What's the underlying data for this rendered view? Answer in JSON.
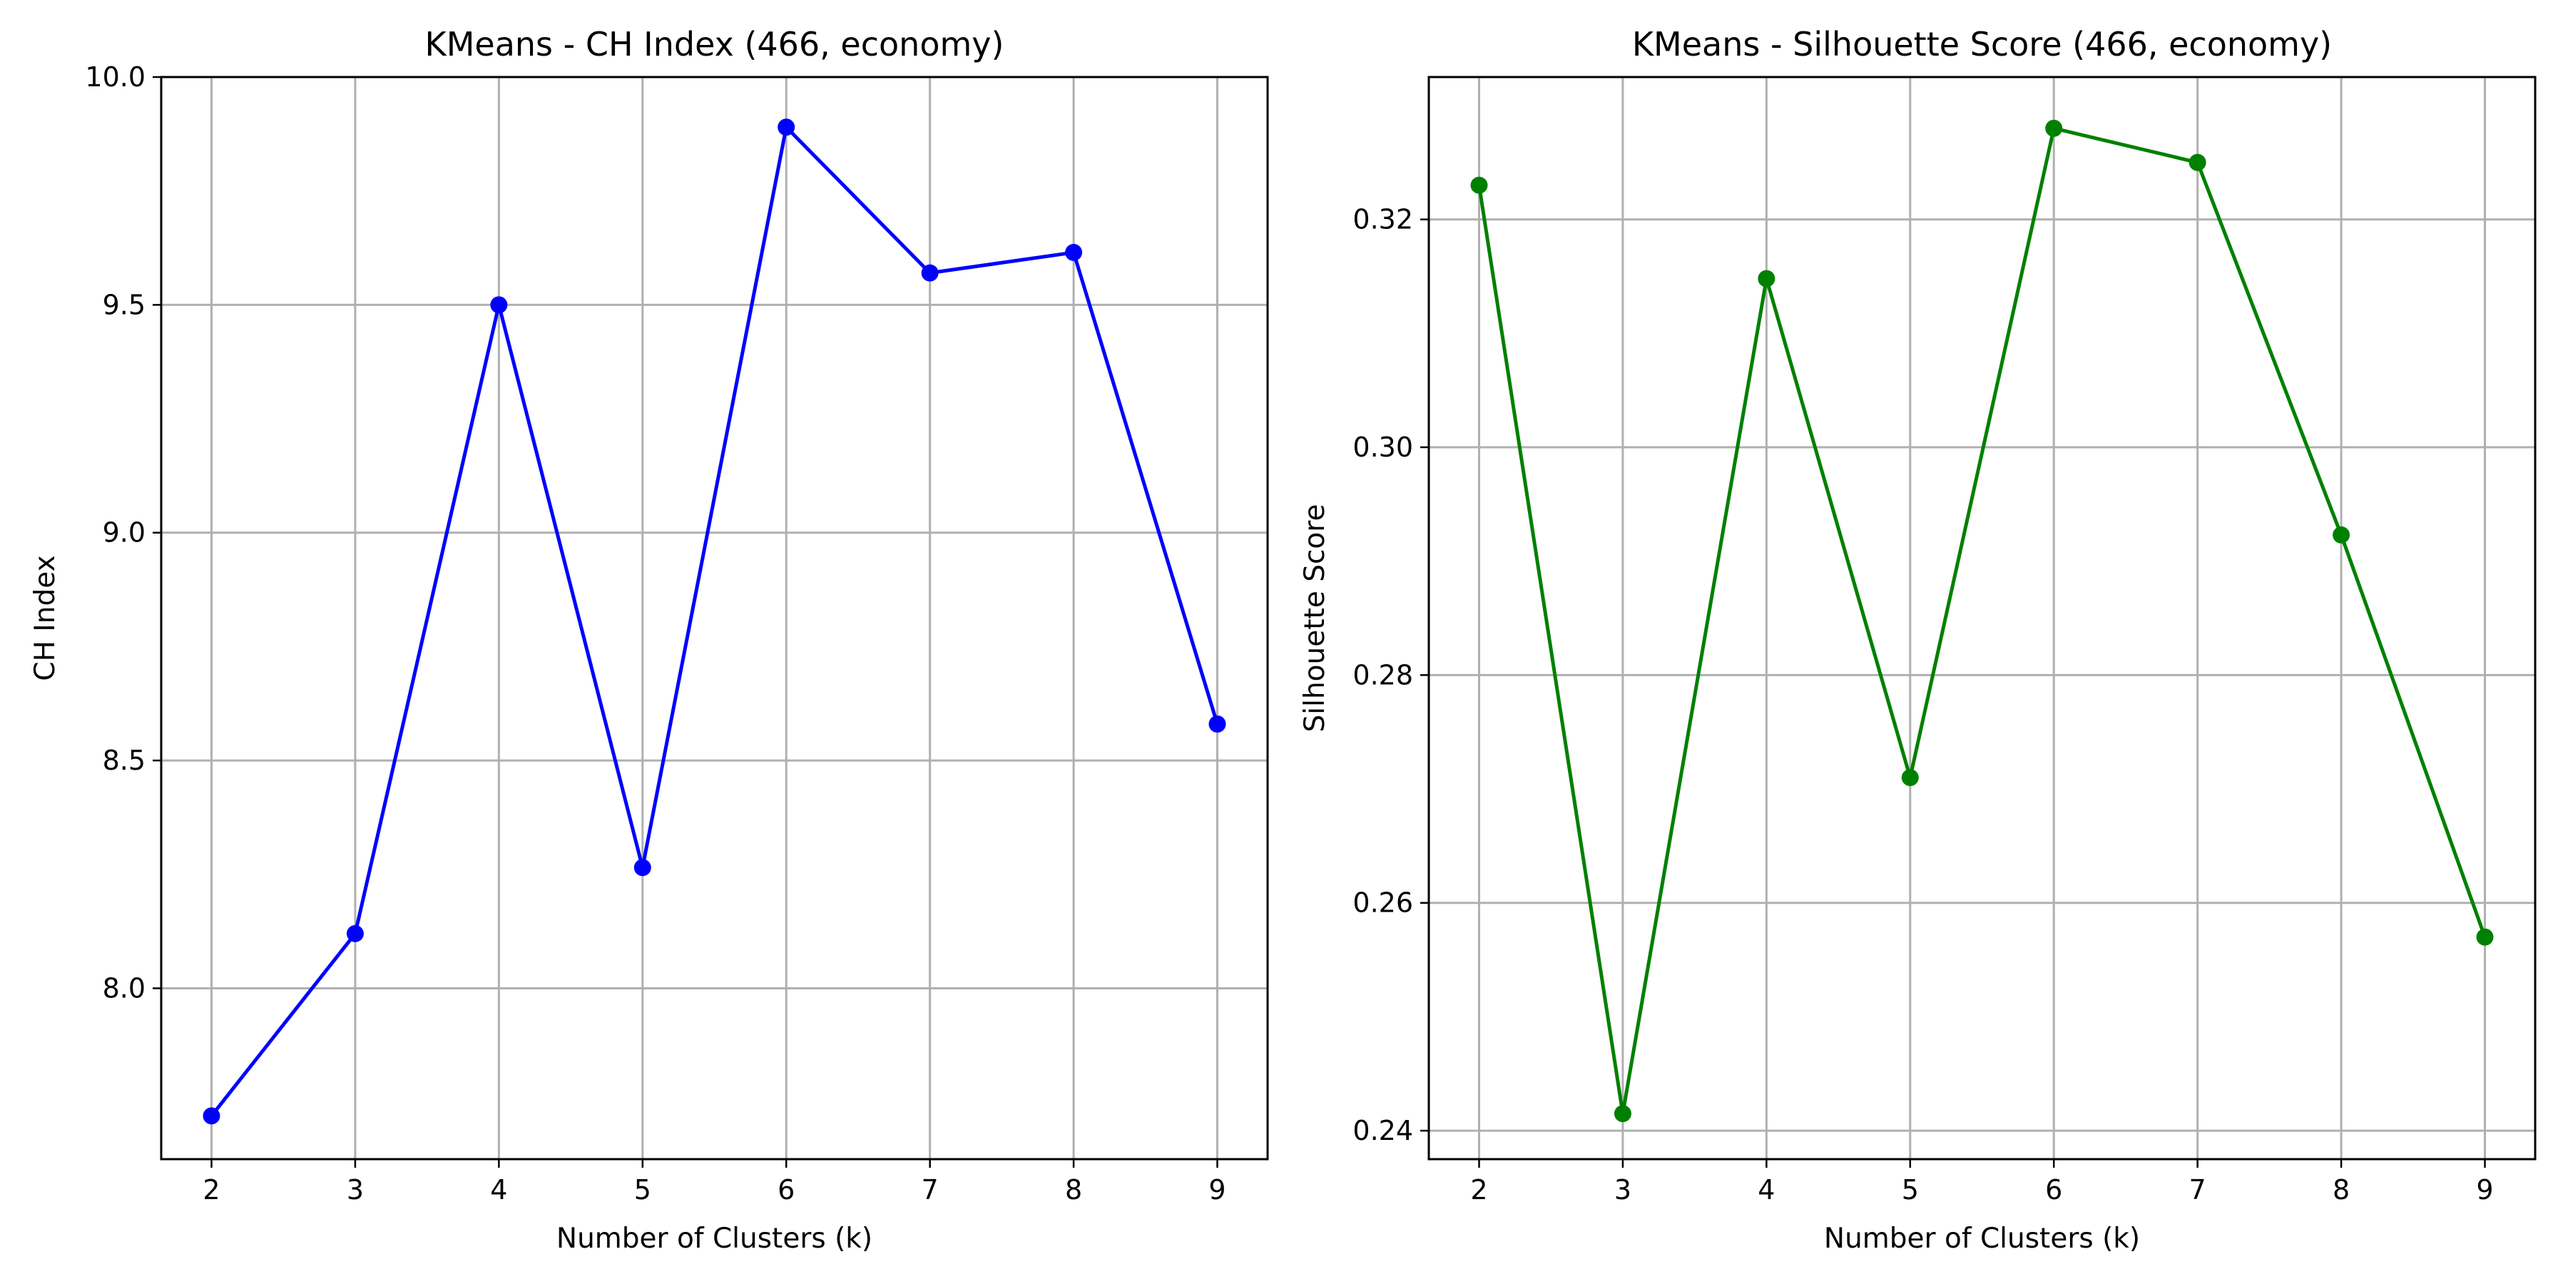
{
  "chart_data": [
    {
      "type": "line",
      "title": "KMeans - CH Index (466, economy)",
      "xlabel": "Number of Clusters (k)",
      "ylabel": "CH Index",
      "x": [
        2,
        3,
        4,
        5,
        6,
        7,
        8,
        9
      ],
      "xticks": [
        "2",
        "3",
        "4",
        "5",
        "6",
        "7",
        "8",
        "9"
      ],
      "xlim": [
        1.65,
        9.35
      ],
      "ylim": [
        7.625,
        10.0
      ],
      "yticks": [
        8.0,
        8.5,
        9.0,
        9.5,
        10.0
      ],
      "ytick_labels": [
        "8.0",
        "8.5",
        "9.0",
        "9.5",
        "10.0"
      ],
      "grid": true,
      "series": [
        {
          "color": "#0000ff",
          "marker": "circle",
          "values": [
            7.72,
            8.12,
            9.5,
            8.265,
            9.89,
            9.57,
            9.615,
            8.58
          ]
        }
      ]
    },
    {
      "type": "line",
      "title": "KMeans - Silhouette Score (466, economy)",
      "xlabel": "Number of Clusters (k)",
      "ylabel": "Silhouette Score",
      "x": [
        2,
        3,
        4,
        5,
        6,
        7,
        8,
        9
      ],
      "xticks": [
        "2",
        "3",
        "4",
        "5",
        "6",
        "7",
        "8",
        "9"
      ],
      "xlim": [
        1.65,
        9.35
      ],
      "ylim": [
        0.2375,
        0.3325
      ],
      "yticks": [
        0.24,
        0.26,
        0.28,
        0.3,
        0.32
      ],
      "ytick_labels": [
        "0.24",
        "0.26",
        "0.28",
        "0.30",
        "0.32"
      ],
      "grid": true,
      "series": [
        {
          "color": "#008000",
          "marker": "circle",
          "values": [
            0.323,
            0.2415,
            0.3148,
            0.271,
            0.328,
            0.325,
            0.2923,
            0.257
          ]
        }
      ]
    }
  ]
}
